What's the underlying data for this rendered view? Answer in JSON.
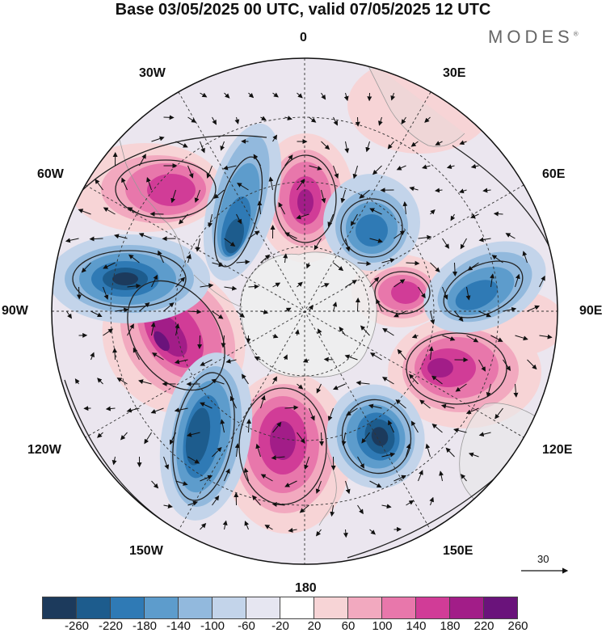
{
  "header": {
    "title": "Base 03/05/2025 00 UTC, valid 07/05/2025 12 UTC",
    "brand": "MODES",
    "brand_mark": "®"
  },
  "map": {
    "projection": "south polar stereographic",
    "longitude_labels": {
      "north": "0",
      "south": "180",
      "west": "90W",
      "east": "90E",
      "nw1": "30W",
      "ne1": "30E",
      "nw2": "60W",
      "ne2": "60E",
      "sw1": "120W",
      "se1": "120E",
      "sw2": "150W",
      "se2": "150E"
    },
    "reference_vector_label": "30"
  },
  "colorbar": {
    "ticks": [
      "-260",
      "-220",
      "-180",
      "-140",
      "-100",
      "-60",
      "-20",
      "20",
      "60",
      "100",
      "140",
      "180",
      "220",
      "260"
    ],
    "colors": [
      "#1c3a5c",
      "#1d5c8d",
      "#2f7ab5",
      "#5d9ccc",
      "#92b9dd",
      "#c3d4ea",
      "#e6e6f1",
      "#ffffff",
      "#f7d4d6",
      "#f2a9bf",
      "#e877ab",
      "#d13c97",
      "#a21d88",
      "#6a137b"
    ]
  }
}
